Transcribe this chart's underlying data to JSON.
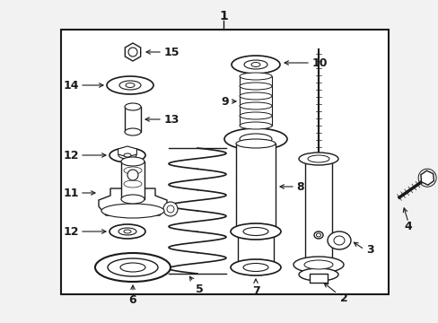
{
  "bg_color": "#f2f2f2",
  "box_color": "#ffffff",
  "line_color": "#1a1a1a",
  "fig_width": 4.89,
  "fig_height": 3.6,
  "dpi": 100
}
